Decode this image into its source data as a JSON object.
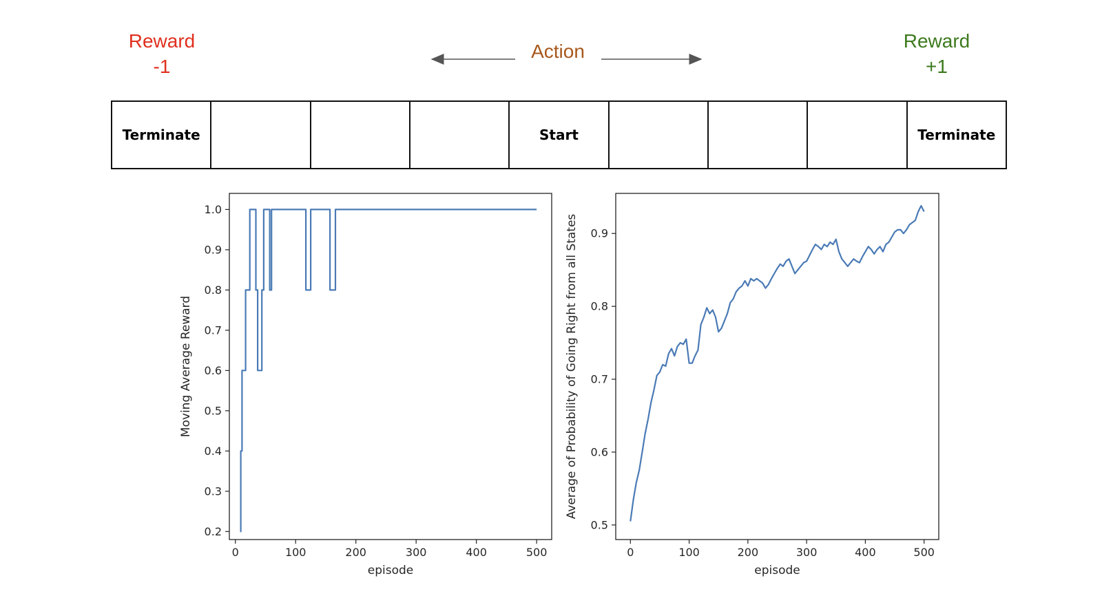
{
  "header": {
    "reward_left": {
      "line1": "Reward",
      "line2": "-1"
    },
    "reward_right": {
      "line1": "Reward",
      "line2": "+1"
    },
    "action": "Action"
  },
  "grid": {
    "cells": [
      "Terminate",
      "",
      "",
      "",
      "Start",
      "",
      "",
      "",
      "Terminate"
    ]
  },
  "colors": {
    "reward_negative": "#e0301e",
    "reward_positive": "#3d7a1e",
    "action": "#a8581c",
    "series": "#4a7ab5"
  },
  "chart_data": [
    {
      "type": "line",
      "xlabel": "episode",
      "ylabel": "Moving Average Reward",
      "xlim": [
        -10,
        525
      ],
      "ylim": [
        0.18,
        1.04
      ],
      "xticks": [
        0,
        100,
        200,
        300,
        400,
        500
      ],
      "yticks": [
        0.2,
        0.3,
        0.4,
        0.5,
        0.6,
        0.7,
        0.8,
        0.9,
        1.0
      ],
      "grid": false,
      "series": [
        {
          "x": [
            8,
            9,
            9,
            11,
            11,
            13,
            13,
            17,
            17,
            24,
            24,
            26,
            26,
            34,
            34,
            37,
            37,
            39,
            39,
            44,
            44,
            47,
            47,
            49,
            49,
            57,
            57,
            60,
            60,
            71,
            71,
            117,
            117,
            125,
            125,
            157,
            157,
            166,
            166,
            500
          ],
          "y": [
            0.2,
            0.2,
            0.4,
            0.4,
            0.6,
            0.6,
            0.6,
            0.6,
            0.8,
            0.8,
            1.0,
            1.0,
            1.0,
            1.0,
            0.8,
            0.8,
            0.6,
            0.6,
            0.6,
            0.6,
            0.8,
            0.8,
            1.0,
            1.0,
            1.0,
            1.0,
            0.8,
            0.8,
            1.0,
            1.0,
            1.0,
            1.0,
            0.8,
            0.8,
            1.0,
            1.0,
            0.8,
            0.8,
            1.0,
            1.0
          ]
        }
      ]
    },
    {
      "type": "line",
      "xlabel": "episode",
      "ylabel": "Average of Probability of Going Right from all States",
      "xlim": [
        -25,
        525
      ],
      "ylim": [
        0.48,
        0.955
      ],
      "xticks": [
        0,
        100,
        200,
        300,
        400,
        500
      ],
      "yticks": [
        0.5,
        0.6,
        0.7,
        0.8,
        0.9
      ],
      "grid": false,
      "series": [
        {
          "x": [
            0,
            5,
            10,
            15,
            20,
            25,
            30,
            35,
            40,
            45,
            50,
            55,
            60,
            65,
            70,
            75,
            80,
            85,
            90,
            95,
            100,
            105,
            110,
            115,
            120,
            125,
            130,
            135,
            140,
            145,
            150,
            155,
            160,
            165,
            170,
            175,
            180,
            185,
            190,
            195,
            200,
            205,
            210,
            215,
            220,
            225,
            230,
            235,
            240,
            245,
            250,
            255,
            260,
            265,
            270,
            275,
            280,
            285,
            290,
            295,
            300,
            305,
            310,
            315,
            320,
            325,
            330,
            335,
            340,
            345,
            350,
            355,
            360,
            365,
            370,
            375,
            380,
            385,
            390,
            395,
            400,
            405,
            410,
            415,
            420,
            425,
            430,
            435,
            440,
            445,
            450,
            455,
            460,
            465,
            470,
            475,
            480,
            485,
            490,
            495,
            500
          ],
          "y": [
            0.505,
            0.535,
            0.558,
            0.575,
            0.6,
            0.625,
            0.645,
            0.668,
            0.685,
            0.705,
            0.71,
            0.72,
            0.718,
            0.735,
            0.742,
            0.732,
            0.745,
            0.75,
            0.748,
            0.755,
            0.722,
            0.722,
            0.732,
            0.74,
            0.775,
            0.785,
            0.798,
            0.79,
            0.795,
            0.785,
            0.765,
            0.77,
            0.78,
            0.79,
            0.805,
            0.81,
            0.82,
            0.825,
            0.828,
            0.835,
            0.828,
            0.838,
            0.835,
            0.838,
            0.835,
            0.832,
            0.825,
            0.83,
            0.838,
            0.845,
            0.852,
            0.858,
            0.855,
            0.862,
            0.865,
            0.855,
            0.845,
            0.85,
            0.855,
            0.86,
            0.862,
            0.87,
            0.878,
            0.885,
            0.882,
            0.878,
            0.885,
            0.882,
            0.888,
            0.885,
            0.892,
            0.875,
            0.865,
            0.86,
            0.855,
            0.86,
            0.865,
            0.862,
            0.86,
            0.868,
            0.875,
            0.882,
            0.878,
            0.872,
            0.878,
            0.882,
            0.875,
            0.885,
            0.888,
            0.895,
            0.902,
            0.905,
            0.905,
            0.9,
            0.905,
            0.912,
            0.915,
            0.918,
            0.93,
            0.938,
            0.93
          ]
        }
      ]
    }
  ]
}
